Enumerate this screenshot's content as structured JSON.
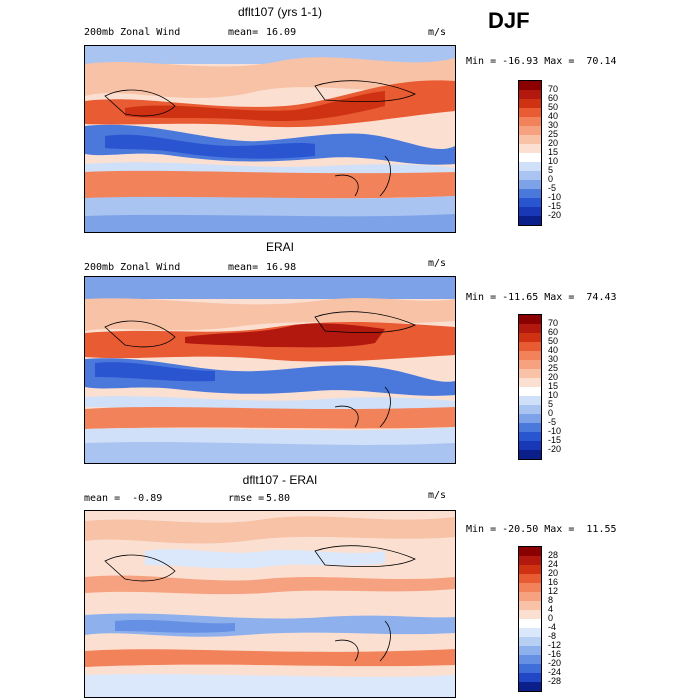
{
  "season": "DJF",
  "panels": [
    {
      "title": "dflt107 (yrs 1-1)",
      "left_label": "200mb Zonal Wind",
      "stat_label": "mean=",
      "stat_value": "16.09",
      "units": "m/s",
      "minmax": "Min = -16.93 Max =  70.14",
      "colorbar": {
        "labels": [
          "70",
          "60",
          "50",
          "40",
          "30",
          "25",
          "20",
          "15",
          "10",
          "5",
          "0",
          "-5",
          "-10",
          "-15",
          "-20"
        ],
        "colors": [
          "#8b0000",
          "#b2180e",
          "#cf3213",
          "#e85b33",
          "#f2825a",
          "#f6a280",
          "#f8c2a7",
          "#fbe0d2",
          "#ffffff",
          "#cfe0f8",
          "#a9c4f1",
          "#7ea2e8",
          "#4b79db",
          "#2a55d1",
          "#1838b8",
          "#0a1f8a"
        ]
      }
    },
    {
      "title": "ERAI",
      "left_label": "200mb Zonal Wind",
      "stat_label": "mean=",
      "stat_value": "16.98",
      "units": "m/s",
      "minmax": "Min = -11.65 Max =  74.43",
      "colorbar": {
        "labels": [
          "70",
          "60",
          "50",
          "40",
          "30",
          "25",
          "20",
          "15",
          "10",
          "5",
          "0",
          "-5",
          "-10",
          "-15",
          "-20"
        ],
        "colors": [
          "#8b0000",
          "#b2180e",
          "#cf3213",
          "#e85b33",
          "#f2825a",
          "#f6a280",
          "#f8c2a7",
          "#fbe0d2",
          "#ffffff",
          "#cfe0f8",
          "#a9c4f1",
          "#7ea2e8",
          "#4b79db",
          "#2a55d1",
          "#1838b8",
          "#0a1f8a"
        ]
      }
    },
    {
      "title": "dflt107 - ERAI",
      "left_label": "mean =  -0.89",
      "stat_label": "rmse =",
      "stat_value": "5.80",
      "units": "m/s",
      "minmax": "Min = -20.50 Max =  11.55",
      "colorbar": {
        "labels": [
          "28",
          "24",
          "20",
          "16",
          "12",
          "8",
          "4",
          "0",
          "-4",
          "-8",
          "-12",
          "-16",
          "-20",
          "-24",
          "-28"
        ],
        "colors": [
          "#8b0000",
          "#b2180e",
          "#cf3213",
          "#e85b33",
          "#f2825a",
          "#f6a280",
          "#f8c2a7",
          "#fbe0d2",
          "#ffffff",
          "#dbe8fb",
          "#b8cff4",
          "#8eb0ec",
          "#6690e3",
          "#3f6ed8",
          "#2247c6",
          "#0a1f8a"
        ]
      }
    }
  ],
  "chart_data": [
    {
      "type": "heatmap",
      "title": "dflt107 (yrs 1-1)",
      "field": "200mb Zonal Wind",
      "units": "m/s",
      "mean": 16.09,
      "min": -16.93,
      "max": 70.14,
      "contour_levels": [
        -20,
        -15,
        -10,
        -5,
        0,
        5,
        10,
        15,
        20,
        25,
        30,
        40,
        50,
        60,
        70
      ]
    },
    {
      "type": "heatmap",
      "title": "ERAI",
      "field": "200mb Zonal Wind",
      "units": "m/s",
      "mean": 16.98,
      "min": -11.65,
      "max": 74.43,
      "contour_levels": [
        -20,
        -15,
        -10,
        -5,
        0,
        5,
        10,
        15,
        20,
        25,
        30,
        40,
        50,
        60,
        70
      ]
    },
    {
      "type": "heatmap",
      "title": "dflt107 - ERAI",
      "units": "m/s",
      "mean": -0.89,
      "rmse": 5.8,
      "min": -20.5,
      "max": 11.55,
      "contour_levels": [
        -28,
        -24,
        -20,
        -16,
        -12,
        -8,
        -4,
        0,
        4,
        8,
        12,
        16,
        20,
        24,
        28
      ]
    }
  ]
}
